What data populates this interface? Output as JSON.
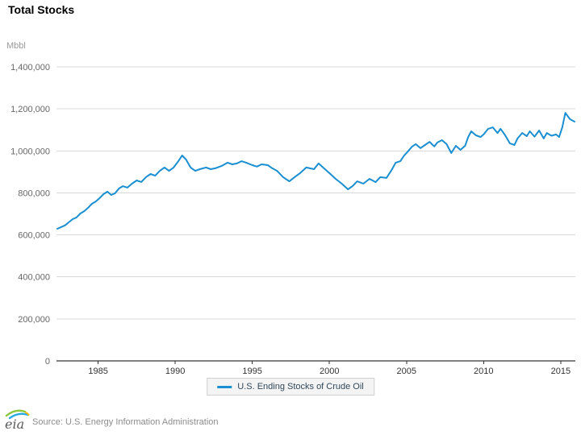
{
  "header": {
    "title": "Total Stocks",
    "unit_label": "Mbbl"
  },
  "legend": {
    "series_label": "U.S. Ending Stocks of Crude Oil"
  },
  "footer": {
    "logo_text": "eia",
    "source": "Source: U.S. Energy Information Administration"
  },
  "colors": {
    "line": "#1a8fd1",
    "grid": "#d9d9d9",
    "axis": "#000000",
    "x_tick_label": "#333333",
    "y_tick_label": "#666666",
    "unit_label": "#999999",
    "legend_bg": "#f4f4f4",
    "legend_border": "#cfcfcf",
    "legend_text": "#31485a",
    "source_text": "#8c8c8c",
    "logo_text": "#58595b",
    "logo_green": "#8cc63e",
    "logo_blue": "#27aae1",
    "logo_yellow": "#fdb913"
  },
  "chart_data": {
    "type": "line",
    "title": "Total Stocks",
    "xlabel": "",
    "ylabel": "Mbbl",
    "ylim": [
      0,
      1400000
    ],
    "xlim": [
      1982.3,
      2015.95
    ],
    "grid": true,
    "legend_position": "bottom",
    "y_ticks": [
      {
        "value": 0,
        "label": "0"
      },
      {
        "value": 200000,
        "label": "200,000"
      },
      {
        "value": 400000,
        "label": "400,000"
      },
      {
        "value": 600000,
        "label": "600,000"
      },
      {
        "value": 800000,
        "label": "800,000"
      },
      {
        "value": 1000000,
        "label": "1,000,000"
      },
      {
        "value": 1200000,
        "label": "1,200,000"
      },
      {
        "value": 1400000,
        "label": "1,400,000"
      }
    ],
    "x_ticks": [
      {
        "value": 1985,
        "label": "1985"
      },
      {
        "value": 1990,
        "label": "1990"
      },
      {
        "value": 1995,
        "label": "1995"
      },
      {
        "value": 2000,
        "label": "2000"
      },
      {
        "value": 2005,
        "label": "2005"
      },
      {
        "value": 2010,
        "label": "2010"
      },
      {
        "value": 2015,
        "label": "2015"
      }
    ],
    "series": [
      {
        "name": "U.S. Ending Stocks of Crude Oil",
        "color": "#1a8fd1",
        "points": [
          [
            1982.35,
            629000
          ],
          [
            1982.6,
            637000
          ],
          [
            1982.85,
            645000
          ],
          [
            1983.1,
            660000
          ],
          [
            1983.35,
            675000
          ],
          [
            1983.6,
            683000
          ],
          [
            1983.85,
            702000
          ],
          [
            1984.1,
            713000
          ],
          [
            1984.35,
            729000
          ],
          [
            1984.6,
            748000
          ],
          [
            1984.85,
            759000
          ],
          [
            1985.1,
            775000
          ],
          [
            1985.35,
            794000
          ],
          [
            1985.6,
            806000
          ],
          [
            1985.85,
            790000
          ],
          [
            1986.1,
            798000
          ],
          [
            1986.35,
            821000
          ],
          [
            1986.6,
            832000
          ],
          [
            1986.9,
            825000
          ],
          [
            1987.2,
            844000
          ],
          [
            1987.5,
            859000
          ],
          [
            1987.8,
            852000
          ],
          [
            1988.1,
            875000
          ],
          [
            1988.4,
            890000
          ],
          [
            1988.7,
            882000
          ],
          [
            1989.0,
            905000
          ],
          [
            1989.3,
            921000
          ],
          [
            1989.6,
            905000
          ],
          [
            1989.9,
            921000
          ],
          [
            1990.2,
            951000
          ],
          [
            1990.45,
            978000
          ],
          [
            1990.7,
            959000
          ],
          [
            1991.0,
            921000
          ],
          [
            1991.3,
            905000
          ],
          [
            1991.6,
            913000
          ],
          [
            1992.0,
            921000
          ],
          [
            1992.3,
            913000
          ],
          [
            1992.6,
            917000
          ],
          [
            1993.0,
            928000
          ],
          [
            1993.4,
            944000
          ],
          [
            1993.7,
            936000
          ],
          [
            1994.0,
            940000
          ],
          [
            1994.3,
            951000
          ],
          [
            1994.6,
            944000
          ],
          [
            1995.0,
            932000
          ],
          [
            1995.3,
            925000
          ],
          [
            1995.6,
            936000
          ],
          [
            1996.0,
            932000
          ],
          [
            1996.3,
            917000
          ],
          [
            1996.6,
            905000
          ],
          [
            1997.0,
            875000
          ],
          [
            1997.4,
            855000
          ],
          [
            1997.8,
            878000
          ],
          [
            1998.1,
            894000
          ],
          [
            1998.5,
            921000
          ],
          [
            1999.0,
            913000
          ],
          [
            1999.3,
            940000
          ],
          [
            1999.6,
            920000
          ],
          [
            2000.0,
            894000
          ],
          [
            2000.4,
            867000
          ],
          [
            2000.8,
            844000
          ],
          [
            2001.2,
            817000
          ],
          [
            2001.5,
            832000
          ],
          [
            2001.8,
            855000
          ],
          [
            2002.2,
            844000
          ],
          [
            2002.6,
            867000
          ],
          [
            2003.0,
            851000
          ],
          [
            2003.3,
            875000
          ],
          [
            2003.7,
            871000
          ],
          [
            2004.0,
            905000
          ],
          [
            2004.3,
            944000
          ],
          [
            2004.6,
            951000
          ],
          [
            2004.85,
            978000
          ],
          [
            2005.1,
            998000
          ],
          [
            2005.35,
            1020000
          ],
          [
            2005.6,
            1032000
          ],
          [
            2005.9,
            1013000
          ],
          [
            2006.2,
            1028000
          ],
          [
            2006.5,
            1043000
          ],
          [
            2006.8,
            1021000
          ],
          [
            2007.0,
            1040000
          ],
          [
            2007.3,
            1051000
          ],
          [
            2007.6,
            1032000
          ],
          [
            2007.9,
            990000
          ],
          [
            2008.2,
            1024000
          ],
          [
            2008.5,
            1005000
          ],
          [
            2008.8,
            1024000
          ],
          [
            2009.0,
            1066000
          ],
          [
            2009.2,
            1093000
          ],
          [
            2009.5,
            1074000
          ],
          [
            2009.8,
            1066000
          ],
          [
            2010.0,
            1078000
          ],
          [
            2010.3,
            1105000
          ],
          [
            2010.6,
            1112000
          ],
          [
            2010.9,
            1085000
          ],
          [
            2011.1,
            1105000
          ],
          [
            2011.4,
            1074000
          ],
          [
            2011.7,
            1036000
          ],
          [
            2012.0,
            1028000
          ],
          [
            2012.2,
            1059000
          ],
          [
            2012.5,
            1085000
          ],
          [
            2012.8,
            1070000
          ],
          [
            2013.0,
            1093000
          ],
          [
            2013.3,
            1068000
          ],
          [
            2013.6,
            1097000
          ],
          [
            2013.9,
            1059000
          ],
          [
            2014.1,
            1085000
          ],
          [
            2014.4,
            1072000
          ],
          [
            2014.7,
            1078000
          ],
          [
            2014.9,
            1066000
          ],
          [
            2015.1,
            1112000
          ],
          [
            2015.3,
            1181000
          ],
          [
            2015.45,
            1166000
          ],
          [
            2015.6,
            1151000
          ],
          [
            2015.8,
            1143000
          ],
          [
            2015.9,
            1139000
          ]
        ]
      }
    ]
  }
}
